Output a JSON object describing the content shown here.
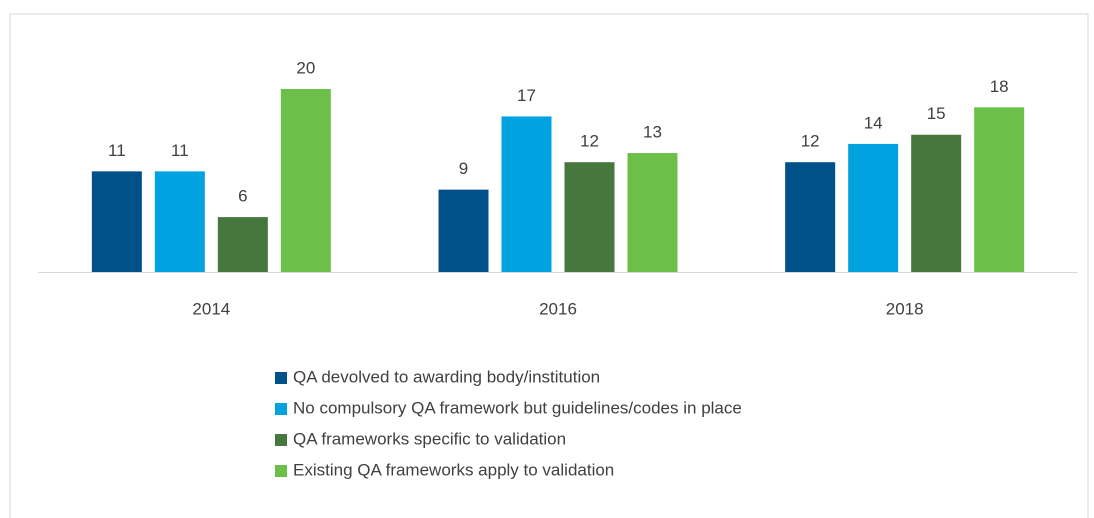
{
  "chart_data": {
    "type": "bar",
    "categories": [
      "2014",
      "2016",
      "2018"
    ],
    "series": [
      {
        "name": "QA devolved to awarding body/institution",
        "color": "#00508a",
        "values": [
          11,
          9,
          12
        ]
      },
      {
        "name": "No compulsory QA framework but guidelines/codes in place",
        "color": "#00a3e0",
        "values": [
          11,
          17,
          14
        ]
      },
      {
        "name": "QA frameworks specific to validation",
        "color": "#46773d",
        "values": [
          6,
          12,
          15
        ]
      },
      {
        "name": "Existing QA frameworks apply to validation",
        "color": "#6cc04a",
        "values": [
          20,
          13,
          18
        ]
      }
    ],
    "legend": "bottom"
  }
}
